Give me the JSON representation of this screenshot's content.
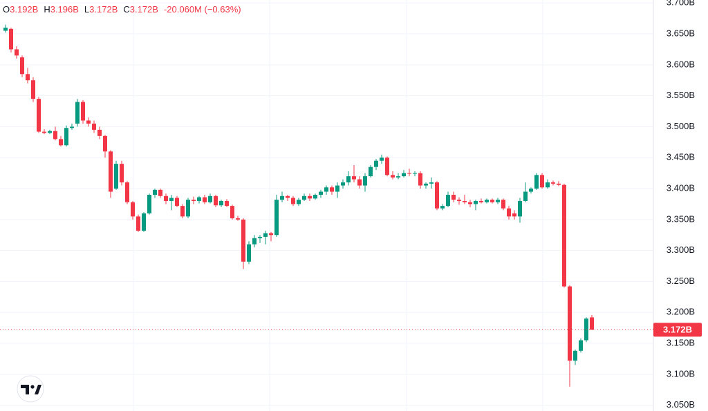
{
  "chart_data": {
    "type": "candlestick",
    "legend": [
      {
        "key": "O",
        "value": "3.192B"
      },
      {
        "key": "H",
        "value": "3.196B"
      },
      {
        "key": "L",
        "value": "3.172B"
      },
      {
        "key": "C",
        "value": "3.172B"
      }
    ],
    "change": "-20.060M (−0.63%)",
    "up_color": "#089981",
    "down_color": "#f23645",
    "ylim": [
      3.0407,
      3.7047
    ],
    "yticks": [
      {
        "value": 3.7,
        "label": "3.700B"
      },
      {
        "value": 3.65,
        "label": "3.650B"
      },
      {
        "value": 3.6,
        "label": "3.600B"
      },
      {
        "value": 3.55,
        "label": "3.550B"
      },
      {
        "value": 3.5,
        "label": "3.500B"
      },
      {
        "value": 3.45,
        "label": "3.450B"
      },
      {
        "value": 3.4,
        "label": "3.400B"
      },
      {
        "value": 3.35,
        "label": "3.350B"
      },
      {
        "value": 3.3,
        "label": "3.300B"
      },
      {
        "value": 3.25,
        "label": "3.250B"
      },
      {
        "value": 3.2,
        "label": "3.200B"
      },
      {
        "value": 3.15,
        "label": "3.150B"
      },
      {
        "value": 3.1,
        "label": "3.100B"
      },
      {
        "value": 3.05,
        "label": "3.050B"
      }
    ],
    "last_price": {
      "value": 3.172,
      "label": "3.172B"
    },
    "grid": true,
    "candles": [
      [
        3.655,
        3.665,
        3.652,
        3.66
      ],
      [
        3.658,
        3.66,
        3.62,
        3.625
      ],
      [
        3.625,
        3.63,
        3.61,
        3.615
      ],
      [
        3.612,
        3.615,
        3.58,
        3.585
      ],
      [
        3.585,
        3.595,
        3.57,
        3.575
      ],
      [
        3.575,
        3.58,
        3.54,
        3.545
      ],
      [
        3.545,
        3.548,
        3.49,
        3.492
      ],
      [
        3.492,
        3.496,
        3.488,
        3.49
      ],
      [
        3.49,
        3.495,
        3.488,
        3.493
      ],
      [
        3.493,
        3.5,
        3.478,
        3.48
      ],
      [
        3.48,
        3.485,
        3.468,
        3.47
      ],
      [
        3.47,
        3.502,
        3.468,
        3.498
      ],
      [
        3.498,
        3.505,
        3.495,
        3.5
      ],
      [
        3.505,
        3.545,
        3.5,
        3.54
      ],
      [
        3.54,
        3.543,
        3.505,
        3.51
      ],
      [
        3.51,
        3.515,
        3.5,
        3.505
      ],
      [
        3.505,
        3.51,
        3.49,
        3.495
      ],
      [
        3.495,
        3.5,
        3.48,
        3.485
      ],
      [
        3.485,
        3.487,
        3.45,
        3.46
      ],
      [
        3.46,
        3.462,
        3.385,
        3.395
      ],
      [
        3.4,
        3.445,
        3.398,
        3.44
      ],
      [
        3.44,
        3.445,
        3.405,
        3.41
      ],
      [
        3.41,
        3.412,
        3.375,
        3.378
      ],
      [
        3.378,
        3.38,
        3.35,
        3.355
      ],
      [
        3.355,
        3.358,
        3.33,
        3.332
      ],
      [
        3.332,
        3.362,
        3.33,
        3.36
      ],
      [
        3.36,
        3.392,
        3.358,
        3.39
      ],
      [
        3.39,
        3.4,
        3.385,
        3.398
      ],
      [
        3.398,
        3.4,
        3.385,
        3.388
      ],
      [
        3.388,
        3.392,
        3.375,
        3.38
      ],
      [
        3.38,
        3.39,
        3.365,
        3.385
      ],
      [
        3.385,
        3.388,
        3.37,
        3.372
      ],
      [
        3.372,
        3.375,
        3.352,
        3.355
      ],
      [
        3.355,
        3.385,
        3.352,
        3.382
      ],
      [
        3.382,
        3.387,
        3.375,
        3.38
      ],
      [
        3.38,
        3.388,
        3.376,
        3.386
      ],
      [
        3.386,
        3.39,
        3.375,
        3.378
      ],
      [
        3.378,
        3.392,
        3.376,
        3.388
      ],
      [
        3.388,
        3.39,
        3.37,
        3.373
      ],
      [
        3.373,
        3.382,
        3.37,
        3.38
      ],
      [
        3.38,
        3.383,
        3.37,
        3.372
      ],
      [
        3.372,
        3.374,
        3.35,
        3.352
      ],
      [
        3.352,
        3.356,
        3.348,
        3.35
      ],
      [
        3.35,
        3.352,
        3.27,
        3.282
      ],
      [
        3.282,
        3.315,
        3.278,
        3.31
      ],
      [
        3.31,
        3.325,
        3.305,
        3.32
      ],
      [
        3.32,
        3.325,
        3.312,
        3.322
      ],
      [
        3.322,
        3.332,
        3.31,
        3.328
      ],
      [
        3.328,
        3.33,
        3.315,
        3.325
      ],
      [
        3.325,
        3.39,
        3.322,
        3.382
      ],
      [
        3.382,
        3.395,
        3.378,
        3.388
      ],
      [
        3.388,
        3.39,
        3.38,
        3.385
      ],
      [
        3.385,
        3.388,
        3.372,
        3.375
      ],
      [
        3.375,
        3.385,
        3.372,
        3.382
      ],
      [
        3.382,
        3.392,
        3.38,
        3.388
      ],
      [
        3.388,
        3.392,
        3.38,
        3.384
      ],
      [
        3.384,
        3.392,
        3.382,
        3.39
      ],
      [
        3.39,
        3.398,
        3.385,
        3.395
      ],
      [
        3.395,
        3.405,
        3.39,
        3.402
      ],
      [
        3.402,
        3.405,
        3.39,
        3.395
      ],
      [
        3.395,
        3.41,
        3.385,
        3.405
      ],
      [
        3.405,
        3.415,
        3.4,
        3.41
      ],
      [
        3.41,
        3.428,
        3.405,
        3.42
      ],
      [
        3.42,
        3.438,
        3.41,
        3.415
      ],
      [
        3.415,
        3.42,
        3.4,
        3.405
      ],
      [
        3.405,
        3.425,
        3.395,
        3.42
      ],
      [
        3.42,
        3.438,
        3.418,
        3.435
      ],
      [
        3.435,
        3.448,
        3.43,
        3.445
      ],
      [
        3.445,
        3.455,
        3.44,
        3.45
      ],
      [
        3.45,
        3.452,
        3.42,
        3.422
      ],
      [
        3.422,
        3.428,
        3.415,
        3.418
      ],
      [
        3.418,
        3.425,
        3.415,
        3.42
      ],
      [
        3.42,
        3.43,
        3.418,
        3.425
      ],
      [
        3.425,
        3.432,
        3.42,
        3.424
      ],
      [
        3.424,
        3.428,
        3.42,
        3.425
      ],
      [
        3.425,
        3.428,
        3.4,
        3.405
      ],
      [
        3.405,
        3.41,
        3.4,
        3.408
      ],
      [
        3.408,
        3.418,
        3.4,
        3.41
      ],
      [
        3.41,
        3.412,
        3.365,
        3.368
      ],
      [
        3.368,
        3.375,
        3.365,
        3.372
      ],
      [
        3.372,
        3.395,
        3.37,
        3.39
      ],
      [
        3.39,
        3.395,
        3.378,
        3.382
      ],
      [
        3.382,
        3.386,
        3.374,
        3.38
      ],
      [
        3.38,
        3.39,
        3.375,
        3.378
      ],
      [
        3.378,
        3.382,
        3.37,
        3.375
      ],
      [
        3.375,
        3.382,
        3.365,
        3.38
      ],
      [
        3.38,
        3.384,
        3.376,
        3.378
      ],
      [
        3.378,
        3.384,
        3.376,
        3.382
      ],
      [
        3.382,
        3.384,
        3.376,
        3.378
      ],
      [
        3.378,
        3.385,
        3.375,
        3.382
      ],
      [
        3.382,
        3.384,
        3.365,
        3.368
      ],
      [
        3.368,
        3.372,
        3.35,
        3.355
      ],
      [
        3.36,
        3.365,
        3.35,
        3.355
      ],
      [
        3.355,
        3.385,
        3.345,
        3.38
      ],
      [
        3.38,
        3.41,
        3.378,
        3.395
      ],
      [
        3.395,
        3.402,
        3.392,
        3.4
      ],
      [
        3.4,
        3.425,
        3.398,
        3.422
      ],
      [
        3.422,
        3.425,
        3.4,
        3.402
      ],
      [
        3.402,
        3.415,
        3.4,
        3.41
      ],
      [
        3.41,
        3.413,
        3.405,
        3.408
      ],
      [
        3.408,
        3.412,
        3.404,
        3.406
      ],
      [
        3.406,
        3.408,
        3.24,
        3.242
      ],
      [
        3.242,
        3.244,
        3.08,
        3.122
      ],
      [
        3.122,
        3.14,
        3.115,
        3.138
      ],
      [
        3.138,
        3.158,
        3.135,
        3.155
      ],
      [
        3.155,
        3.192,
        3.152,
        3.19
      ],
      [
        3.192,
        3.196,
        3.172,
        3.172
      ]
    ]
  }
}
